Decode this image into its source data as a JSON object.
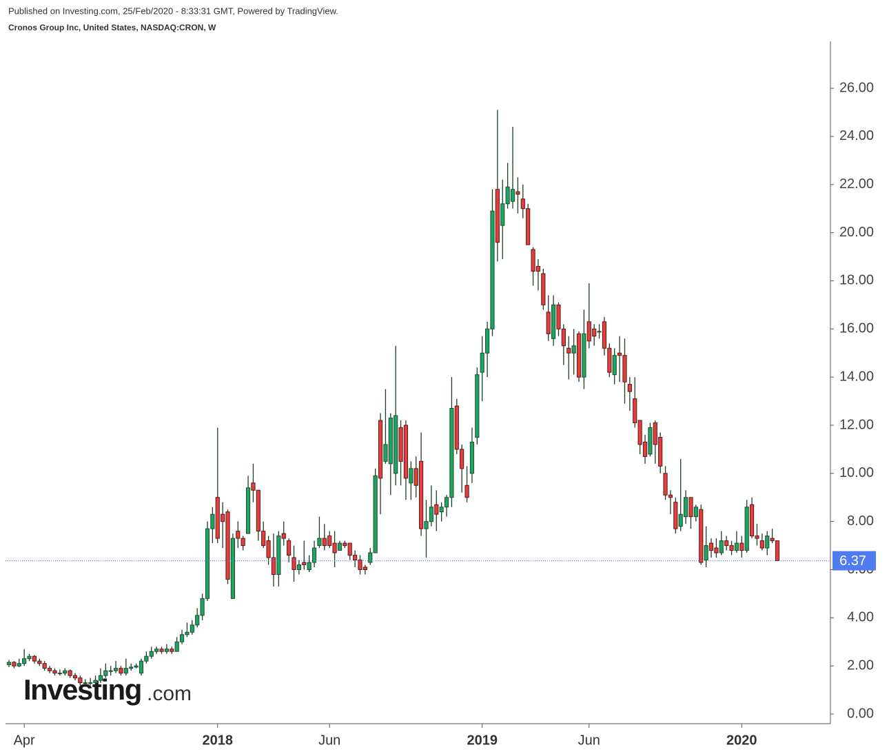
{
  "header": {
    "published": "Published on Investing.com, 25/Feb/2020 - 8:33:31 GMT, Powered by TradingView.",
    "symbol": "Cronos Group Inc, United States, NASDAQ:CRON, W"
  },
  "logo": [
    "Investing",
    ".com"
  ],
  "chart_data": {
    "type": "candlestick",
    "categories": [
      null,
      null,
      null,
      "Apr",
      null,
      null,
      null,
      null,
      null,
      null,
      null,
      null,
      null,
      null,
      null,
      null,
      null,
      null,
      null,
      null,
      null,
      null,
      null,
      null,
      null,
      null,
      null,
      null,
      null,
      null,
      null,
      null,
      null,
      null,
      null,
      null,
      null,
      null,
      null,
      null,
      null,
      "2018",
      null,
      null,
      null,
      null,
      null,
      null,
      null,
      null,
      null,
      null,
      null,
      null,
      null,
      null,
      null,
      null,
      null,
      null,
      null,
      null,
      null,
      "Jun",
      null,
      null,
      null,
      null,
      null,
      null,
      null,
      null,
      null,
      null,
      null,
      null,
      null,
      null,
      null,
      null,
      null,
      null,
      null,
      null,
      null,
      null,
      null,
      null,
      null,
      null,
      null,
      null,
      null,
      "2019",
      null,
      null,
      null,
      null,
      null,
      null,
      null,
      null,
      null,
      null,
      null,
      null,
      null,
      null,
      null,
      null,
      null,
      null,
      null,
      null,
      "Jun",
      null,
      null,
      null,
      null,
      null,
      null,
      null,
      null,
      null,
      null,
      null,
      null,
      null,
      null,
      null,
      null,
      null,
      null,
      null,
      null,
      null,
      null,
      null,
      null,
      null,
      null,
      null,
      null,
      null,
      "2020",
      null,
      null,
      null,
      null,
      null,
      null,
      null
    ],
    "ohlc": [
      [
        2.05,
        2.25,
        1.95,
        2.15
      ],
      [
        2.15,
        2.2,
        1.9,
        2.0
      ],
      [
        2.0,
        2.3,
        1.95,
        2.1
      ],
      [
        2.1,
        2.7,
        2.0,
        2.3
      ],
      [
        2.3,
        2.5,
        2.2,
        2.4
      ],
      [
        2.4,
        2.45,
        2.1,
        2.2
      ],
      [
        2.2,
        2.3,
        2.0,
        2.1
      ],
      [
        2.1,
        2.2,
        1.8,
        1.9
      ],
      [
        1.9,
        2.0,
        1.7,
        1.8
      ],
      [
        1.8,
        1.9,
        1.6,
        1.7
      ],
      [
        1.7,
        1.85,
        1.6,
        1.7
      ],
      [
        1.7,
        1.9,
        1.6,
        1.8
      ],
      [
        1.8,
        1.85,
        1.5,
        1.6
      ],
      [
        1.6,
        1.7,
        1.4,
        1.5
      ],
      [
        1.5,
        1.6,
        1.2,
        1.3
      ],
      [
        1.3,
        1.45,
        1.2,
        1.3
      ],
      [
        1.3,
        1.5,
        1.2,
        1.3
      ],
      [
        1.3,
        1.6,
        1.25,
        1.4
      ],
      [
        1.4,
        1.9,
        1.3,
        1.6
      ],
      [
        1.6,
        2.1,
        1.5,
        1.8
      ],
      [
        1.8,
        2.0,
        1.6,
        1.8
      ],
      [
        1.8,
        2.2,
        1.7,
        1.9
      ],
      [
        1.9,
        2.0,
        1.6,
        1.7
      ],
      [
        1.7,
        2.3,
        1.6,
        1.9
      ],
      [
        1.9,
        2.1,
        1.8,
        1.95
      ],
      [
        1.95,
        2.1,
        1.9,
        2.0
      ],
      [
        1.7,
        2.3,
        1.6,
        2.2
      ],
      [
        2.2,
        2.6,
        2.1,
        2.4
      ],
      [
        2.4,
        2.8,
        2.3,
        2.6
      ],
      [
        2.6,
        2.8,
        2.5,
        2.7
      ],
      [
        2.7,
        2.8,
        2.5,
        2.6
      ],
      [
        2.6,
        2.9,
        2.5,
        2.7
      ],
      [
        2.7,
        2.8,
        2.5,
        2.6
      ],
      [
        2.6,
        3.2,
        2.6,
        3.0
      ],
      [
        3.0,
        3.5,
        2.9,
        3.3
      ],
      [
        3.3,
        3.8,
        3.2,
        3.4
      ],
      [
        3.4,
        3.9,
        3.3,
        3.7
      ],
      [
        3.7,
        4.4,
        3.6,
        4.1
      ],
      [
        4.1,
        5.0,
        3.9,
        4.8
      ],
      [
        4.8,
        8.0,
        4.7,
        7.7
      ],
      [
        7.7,
        8.6,
        7.1,
        8.3
      ],
      [
        9.0,
        11.9,
        7.1,
        7.3
      ],
      [
        8.3,
        8.8,
        6.9,
        8.0
      ],
      [
        8.4,
        8.5,
        5.4,
        5.6
      ],
      [
        4.8,
        7.5,
        4.8,
        7.3
      ],
      [
        7.6,
        8.0,
        6.9,
        7.3
      ],
      [
        7.3,
        7.4,
        6.8,
        7.0
      ],
      [
        7.5,
        9.9,
        7.5,
        9.4
      ],
      [
        9.6,
        10.4,
        8.8,
        9.3
      ],
      [
        9.3,
        9.3,
        7.2,
        7.6
      ],
      [
        7.6,
        8.0,
        6.9,
        7.0
      ],
      [
        7.2,
        7.4,
        6.2,
        6.5
      ],
      [
        6.5,
        7.5,
        5.3,
        5.8
      ],
      [
        5.8,
        7.6,
        5.3,
        7.4
      ],
      [
        7.5,
        8.0,
        7.0,
        7.3
      ],
      [
        7.2,
        7.3,
        6.3,
        6.6
      ],
      [
        6.5,
        7.0,
        5.5,
        6.0
      ],
      [
        6.0,
        6.4,
        5.8,
        6.2
      ],
      [
        6.3,
        7.2,
        6.0,
        6.2
      ],
      [
        6.0,
        6.6,
        5.9,
        6.3
      ],
      [
        6.3,
        7.2,
        6.1,
        6.9
      ],
      [
        7.0,
        8.2,
        6.9,
        7.3
      ],
      [
        7.3,
        7.9,
        6.8,
        7.0
      ],
      [
        7.4,
        7.6,
        6.9,
        7.0
      ],
      [
        7.1,
        7.6,
        6.1,
        6.7
      ],
      [
        6.8,
        7.2,
        6.8,
        7.1
      ],
      [
        7.1,
        7.2,
        6.9,
        7.0
      ],
      [
        7.1,
        7.1,
        6.4,
        6.6
      ],
      [
        6.6,
        6.8,
        6.1,
        6.4
      ],
      [
        6.4,
        6.6,
        5.8,
        6.0
      ],
      [
        6.1,
        6.2,
        5.8,
        6.0
      ],
      [
        6.3,
        6.9,
        6.2,
        6.7
      ],
      [
        6.7,
        10.2,
        6.7,
        9.9
      ],
      [
        12.2,
        12.5,
        8.3,
        9.8
      ],
      [
        10.5,
        13.5,
        10.4,
        11.2
      ],
      [
        10.4,
        12.5,
        9.1,
        12.3
      ],
      [
        10.0,
        15.3,
        9.5,
        12.4
      ],
      [
        11.9,
        12.2,
        9.5,
        10.5
      ],
      [
        12.0,
        12.2,
        8.9,
        9.8
      ],
      [
        9.6,
        10.5,
        8.9,
        10.2
      ],
      [
        10.2,
        10.7,
        9.0,
        9.5
      ],
      [
        10.5,
        11.7,
        7.4,
        7.7
      ],
      [
        7.7,
        8.9,
        6.5,
        8.0
      ],
      [
        8.0,
        9.5,
        7.8,
        8.6
      ],
      [
        8.7,
        9.3,
        7.6,
        8.3
      ],
      [
        8.4,
        8.8,
        8.0,
        8.6
      ],
      [
        8.6,
        9.1,
        8.2,
        9.0
      ],
      [
        9.0,
        14.0,
        8.6,
        12.7
      ],
      [
        12.8,
        13.1,
        10.8,
        11.0
      ],
      [
        11.0,
        11.2,
        9.2,
        10.2
      ],
      [
        9.5,
        10.3,
        8.8,
        9.0
      ],
      [
        10.0,
        11.9,
        9.6,
        11.3
      ],
      [
        11.5,
        14.4,
        11.2,
        14.1
      ],
      [
        14.2,
        15.7,
        13.0,
        15.0
      ],
      [
        15.0,
        16.3,
        14.0,
        16.0
      ],
      [
        16.0,
        21.8,
        15.7,
        20.9
      ],
      [
        21.8,
        25.1,
        18.8,
        19.6
      ],
      [
        20.3,
        22.2,
        18.9,
        21.2
      ],
      [
        21.2,
        22.9,
        21.0,
        21.9
      ],
      [
        21.3,
        24.4,
        21.0,
        21.8
      ],
      [
        21.7,
        22.3,
        20.8,
        21.6
      ],
      [
        21.4,
        22.0,
        20.6,
        21.0
      ],
      [
        21.0,
        21.2,
        19.5,
        19.5
      ],
      [
        19.3,
        19.4,
        17.8,
        18.4
      ],
      [
        18.6,
        18.9,
        17.6,
        18.4
      ],
      [
        18.3,
        18.5,
        16.8,
        17.0
      ],
      [
        16.7,
        17.4,
        15.5,
        15.8
      ],
      [
        15.6,
        17.4,
        15.3,
        17.0
      ],
      [
        17.0,
        17.1,
        15.7,
        16.0
      ],
      [
        16.0,
        16.2,
        14.5,
        15.3
      ],
      [
        15.2,
        15.7,
        13.9,
        15.0
      ],
      [
        15.0,
        16.0,
        14.1,
        15.3
      ],
      [
        15.8,
        15.9,
        13.8,
        14.0
      ],
      [
        14.0,
        16.8,
        13.5,
        15.8
      ],
      [
        16.3,
        17.9,
        15.2,
        15.5
      ],
      [
        16.0,
        16.2,
        15.3,
        15.7
      ],
      [
        15.9,
        16.2,
        15.6,
        15.9
      ],
      [
        16.3,
        16.5,
        14.9,
        15.2
      ],
      [
        15.2,
        15.4,
        14.0,
        14.2
      ],
      [
        14.1,
        15.2,
        13.7,
        14.9
      ],
      [
        15.0,
        15.7,
        13.8,
        14.9
      ],
      [
        14.9,
        15.6,
        12.9,
        13.8
      ],
      [
        13.7,
        14.0,
        12.6,
        13.4
      ],
      [
        13.1,
        14.0,
        11.9,
        12.1
      ],
      [
        12.2,
        12.2,
        10.8,
        11.2
      ],
      [
        11.3,
        11.6,
        10.4,
        10.7
      ],
      [
        10.8,
        12.1,
        10.7,
        11.9
      ],
      [
        12.1,
        12.2,
        10.4,
        11.2
      ],
      [
        11.5,
        11.7,
        10.0,
        10.3
      ],
      [
        10.0,
        10.3,
        8.9,
        9.1
      ],
      [
        9.1,
        9.3,
        8.3,
        9.0
      ],
      [
        8.8,
        9.0,
        7.5,
        7.7
      ],
      [
        7.8,
        10.6,
        7.6,
        8.3
      ],
      [
        8.2,
        9.3,
        7.9,
        9.0
      ],
      [
        9.0,
        9.0,
        7.7,
        8.2
      ],
      [
        8.2,
        8.7,
        8.0,
        8.6
      ],
      [
        8.5,
        8.7,
        6.2,
        6.3
      ],
      [
        6.4,
        7.8,
        6.1,
        7.0
      ],
      [
        7.1,
        7.3,
        6.5,
        6.8
      ],
      [
        6.9,
        7.3,
        6.5,
        6.7
      ],
      [
        6.7,
        7.6,
        6.6,
        7.2
      ],
      [
        7.2,
        7.4,
        6.8,
        7.0
      ],
      [
        7.0,
        7.2,
        6.6,
        6.8
      ],
      [
        6.8,
        7.6,
        6.7,
        7.1
      ],
      [
        7.1,
        7.4,
        6.5,
        6.8
      ],
      [
        6.8,
        8.9,
        6.7,
        8.6
      ],
      [
        8.7,
        9.0,
        7.3,
        7.4
      ],
      [
        7.4,
        7.9,
        7.0,
        7.3
      ],
      [
        7.2,
        7.5,
        6.8,
        6.9
      ],
      [
        6.9,
        7.6,
        6.6,
        7.4
      ],
      [
        7.3,
        7.7,
        7.1,
        7.2
      ],
      [
        7.2,
        7.2,
        6.37,
        6.37
      ]
    ],
    "up_color": "#1fa463",
    "down_color": "#e2403f",
    "up_border": "#1c4d2c",
    "down_border": "#5a1616",
    "wick_color": "#1e3b22",
    "last_price": 6.37,
    "last_price_color": "#4f7cf0",
    "ylim": [
      -0.4,
      27.95
    ],
    "yticks": [
      {
        "value": 0,
        "label": "0.00"
      },
      {
        "value": 2,
        "label": "2.00"
      },
      {
        "value": 4,
        "label": "4.00"
      },
      {
        "value": 6,
        "label": "6.00"
      },
      {
        "value": 8,
        "label": "8.00"
      },
      {
        "value": 10,
        "label": "10.00"
      },
      {
        "value": 12,
        "label": "12.00"
      },
      {
        "value": 14,
        "label": "14.00"
      },
      {
        "value": 16,
        "label": "16.00"
      },
      {
        "value": 18,
        "label": "18.00"
      },
      {
        "value": 20,
        "label": "20.00"
      },
      {
        "value": 22,
        "label": "22.00"
      },
      {
        "value": 24,
        "label": "24.00"
      },
      {
        "value": 26,
        "label": "26.00"
      }
    ],
    "grid": false
  }
}
